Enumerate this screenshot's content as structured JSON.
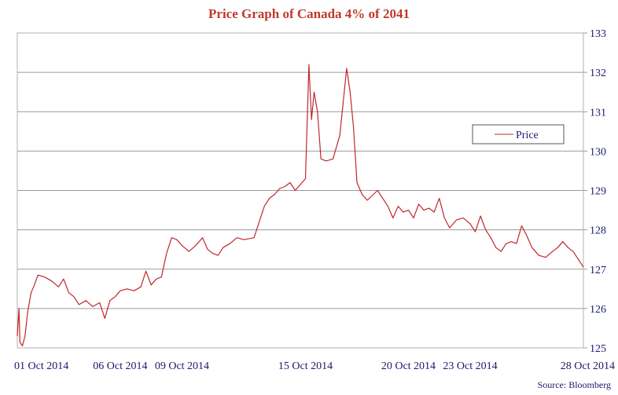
{
  "colors": {
    "title": "#c0392b",
    "series": "#c0272d",
    "axis_text": "#1a1a6e",
    "grid": "#9a9a9a",
    "frame": "#b0b0b0",
    "legend_border": "#555555"
  },
  "chart_data": {
    "type": "line",
    "title": "Price Graph of Canada 4% of 2041",
    "source": "Source: Bloomberg",
    "legend": {
      "label": "Price",
      "placement": "right-middle"
    },
    "grid": "horizontal",
    "y_axis_side": "right",
    "ylim": [
      125,
      133
    ],
    "yticks": [
      125,
      126,
      127,
      128,
      129,
      130,
      131,
      132,
      133
    ],
    "xlim": [
      "2014-10-01",
      "2014-10-28"
    ],
    "xticks": [
      {
        "date": "2014-10-01",
        "label": "01 Oct 2014"
      },
      {
        "date": "2014-10-06",
        "label": "06 Oct 2014"
      },
      {
        "date": "2014-10-09",
        "label": "09 Oct 2014"
      },
      {
        "date": "2014-10-15",
        "label": "15 Oct 2014"
      },
      {
        "date": "2014-10-20",
        "label": "20 Oct 2014"
      },
      {
        "date": "2014-10-23",
        "label": "23 Oct 2014"
      },
      {
        "date": "2014-10-28",
        "label": "28 Oct 2014"
      }
    ],
    "series": [
      {
        "name": "Price",
        "points": [
          [
            "2014-10-01 00:00",
            125.3
          ],
          [
            "2014-10-01 02:00",
            126.0
          ],
          [
            "2014-10-01 03:00",
            125.15
          ],
          [
            "2014-10-01 06:00",
            125.05
          ],
          [
            "2014-10-01 09:00",
            125.3
          ],
          [
            "2014-10-01 12:00",
            125.9
          ],
          [
            "2014-10-01 16:00",
            126.4
          ],
          [
            "2014-10-01 20:00",
            126.6
          ],
          [
            "2014-10-02 00:00",
            126.85
          ],
          [
            "2014-10-02 08:00",
            126.8
          ],
          [
            "2014-10-02 16:00",
            126.7
          ],
          [
            "2014-10-03 00:00",
            126.55
          ],
          [
            "2014-10-03 06:00",
            126.75
          ],
          [
            "2014-10-03 12:00",
            126.4
          ],
          [
            "2014-10-03 18:00",
            126.3
          ],
          [
            "2014-10-04 00:00",
            126.1
          ],
          [
            "2014-10-04 08:00",
            126.2
          ],
          [
            "2014-10-04 16:00",
            126.05
          ],
          [
            "2014-10-05 00:00",
            126.15
          ],
          [
            "2014-10-05 06:00",
            125.75
          ],
          [
            "2014-10-05 12:00",
            126.2
          ],
          [
            "2014-10-05 18:00",
            126.3
          ],
          [
            "2014-10-06 00:00",
            126.45
          ],
          [
            "2014-10-06 08:00",
            126.5
          ],
          [
            "2014-10-06 16:00",
            126.45
          ],
          [
            "2014-10-07 00:00",
            126.55
          ],
          [
            "2014-10-07 06:00",
            126.95
          ],
          [
            "2014-10-07 12:00",
            126.6
          ],
          [
            "2014-10-07 18:00",
            126.75
          ],
          [
            "2014-10-08 00:00",
            126.8
          ],
          [
            "2014-10-08 06:00",
            127.4
          ],
          [
            "2014-10-08 12:00",
            127.8
          ],
          [
            "2014-10-08 18:00",
            127.75
          ],
          [
            "2014-10-09 00:00",
            127.6
          ],
          [
            "2014-10-09 08:00",
            127.45
          ],
          [
            "2014-10-09 16:00",
            127.6
          ],
          [
            "2014-10-10 00:00",
            127.8
          ],
          [
            "2014-10-10 06:00",
            127.5
          ],
          [
            "2014-10-10 12:00",
            127.4
          ],
          [
            "2014-10-10 18:00",
            127.35
          ],
          [
            "2014-10-11 00:00",
            127.55
          ],
          [
            "2014-10-11 08:00",
            127.65
          ],
          [
            "2014-10-11 16:00",
            127.8
          ],
          [
            "2014-10-12 00:00",
            127.75
          ],
          [
            "2014-10-12 12:00",
            127.8
          ],
          [
            "2014-10-13 00:00",
            128.6
          ],
          [
            "2014-10-13 06:00",
            128.8
          ],
          [
            "2014-10-13 12:00",
            128.9
          ],
          [
            "2014-10-13 18:00",
            129.05
          ],
          [
            "2014-10-14 00:00",
            129.1
          ],
          [
            "2014-10-14 06:00",
            129.2
          ],
          [
            "2014-10-14 12:00",
            129.0
          ],
          [
            "2014-10-14 18:00",
            129.15
          ],
          [
            "2014-10-15 00:00",
            129.3
          ],
          [
            "2014-10-15 04:00",
            132.2
          ],
          [
            "2014-10-15 07:00",
            130.8
          ],
          [
            "2014-10-15 10:00",
            131.5
          ],
          [
            "2014-10-15 14:00",
            131.0
          ],
          [
            "2014-10-15 18:00",
            129.8
          ],
          [
            "2014-10-16 00:00",
            129.75
          ],
          [
            "2014-10-16 08:00",
            129.8
          ],
          [
            "2014-10-16 16:00",
            130.4
          ],
          [
            "2014-10-17 00:00",
            132.1
          ],
          [
            "2014-10-17 04:00",
            131.5
          ],
          [
            "2014-10-17 08:00",
            130.6
          ],
          [
            "2014-10-17 12:00",
            129.2
          ],
          [
            "2014-10-17 18:00",
            128.9
          ],
          [
            "2014-10-18 00:00",
            128.75
          ],
          [
            "2014-10-18 12:00",
            129.0
          ],
          [
            "2014-10-19 00:00",
            128.6
          ],
          [
            "2014-10-19 06:00",
            128.3
          ],
          [
            "2014-10-19 12:00",
            128.6
          ],
          [
            "2014-10-19 18:00",
            128.45
          ],
          [
            "2014-10-20 00:00",
            128.5
          ],
          [
            "2014-10-20 06:00",
            128.3
          ],
          [
            "2014-10-20 12:00",
            128.65
          ],
          [
            "2014-10-20 18:00",
            128.5
          ],
          [
            "2014-10-21 00:00",
            128.55
          ],
          [
            "2014-10-21 06:00",
            128.45
          ],
          [
            "2014-10-21 12:00",
            128.8
          ],
          [
            "2014-10-21 18:00",
            128.3
          ],
          [
            "2014-10-22 00:00",
            128.05
          ],
          [
            "2014-10-22 08:00",
            128.25
          ],
          [
            "2014-10-22 16:00",
            128.3
          ],
          [
            "2014-10-23 00:00",
            128.15
          ],
          [
            "2014-10-23 06:00",
            127.95
          ],
          [
            "2014-10-23 12:00",
            128.35
          ],
          [
            "2014-10-23 18:00",
            128.0
          ],
          [
            "2014-10-24 00:00",
            127.8
          ],
          [
            "2014-10-24 06:00",
            127.55
          ],
          [
            "2014-10-24 12:00",
            127.45
          ],
          [
            "2014-10-24 18:00",
            127.65
          ],
          [
            "2014-10-25 00:00",
            127.7
          ],
          [
            "2014-10-25 06:00",
            127.65
          ],
          [
            "2014-10-25 12:00",
            128.1
          ],
          [
            "2014-10-25 18:00",
            127.85
          ],
          [
            "2014-10-26 00:00",
            127.55
          ],
          [
            "2014-10-26 08:00",
            127.35
          ],
          [
            "2014-10-26 16:00",
            127.3
          ],
          [
            "2014-10-27 00:00",
            127.45
          ],
          [
            "2014-10-27 06:00",
            127.55
          ],
          [
            "2014-10-27 12:00",
            127.7
          ],
          [
            "2014-10-27 18:00",
            127.55
          ],
          [
            "2014-10-28 00:00",
            127.45
          ],
          [
            "2014-10-28 06:00",
            127.25
          ],
          [
            "2014-10-28 12:00",
            127.05
          ]
        ]
      }
    ]
  }
}
